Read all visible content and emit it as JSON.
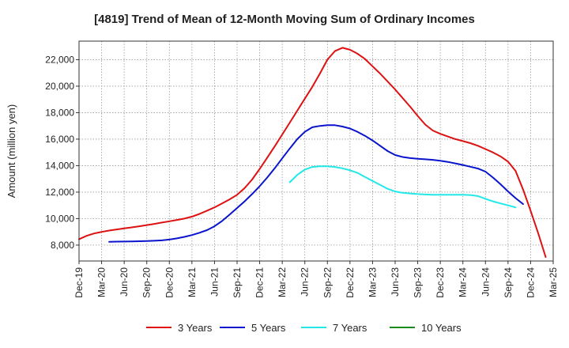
{
  "chart_data": {
    "type": "line",
    "title": "[4819]  Trend of Mean of 12-Month Moving Sum of Ordinary Incomes",
    "xlabel": "",
    "ylabel": "Amount (million yen)",
    "ylim": [
      6800,
      23400
    ],
    "yticks": [
      8000,
      10000,
      12000,
      14000,
      16000,
      18000,
      20000,
      22000
    ],
    "ytick_labels": [
      "8,000",
      "10,000",
      "12,000",
      "14,000",
      "16,000",
      "18,000",
      "20,000",
      "22,000"
    ],
    "x_start": "Dec-19",
    "x_months": 63,
    "xticks": [
      0,
      3,
      6,
      9,
      12,
      15,
      18,
      21,
      24,
      27,
      30,
      33,
      36,
      39,
      42,
      45,
      48,
      51,
      54,
      57,
      60,
      63
    ],
    "xtick_labels": [
      "Dec-19",
      "Mar-20",
      "Jun-20",
      "Sep-20",
      "Dec-20",
      "Mar-21",
      "Jun-21",
      "Sep-21",
      "Dec-21",
      "Mar-22",
      "Jun-22",
      "Sep-22",
      "Dec-22",
      "Mar-23",
      "Jun-23",
      "Sep-23",
      "Dec-23",
      "Mar-24",
      "Jun-24",
      "Sep-24",
      "Dec-24",
      "Mar-25"
    ],
    "grid": true,
    "legend_position": "bottom",
    "series": [
      {
        "name": "3 Years",
        "color": "#dd1111",
        "start": 0,
        "values": [
          8450,
          8700,
          8880,
          9000,
          9100,
          9180,
          9260,
          9340,
          9420,
          9510,
          9600,
          9700,
          9800,
          9900,
          10000,
          10150,
          10350,
          10600,
          10850,
          11150,
          11450,
          11800,
          12300,
          12950,
          13750,
          14600,
          15450,
          16350,
          17250,
          18150,
          19050,
          19950,
          20950,
          22000,
          22650,
          22900,
          22750,
          22450,
          22050,
          21500,
          20950,
          20350,
          19750,
          19100,
          18450,
          17750,
          17100,
          16650,
          16400,
          16200,
          16000,
          15850,
          15700,
          15500,
          15250,
          15000,
          14700,
          14300,
          13600,
          12200,
          10600,
          8900,
          7100
        ]
      },
      {
        "name": "5 Years",
        "color": "#0a14cc",
        "start": 4,
        "values": [
          8250,
          8260,
          8270,
          8280,
          8290,
          8310,
          8330,
          8360,
          8420,
          8510,
          8620,
          8760,
          8930,
          9130,
          9420,
          9820,
          10300,
          10800,
          11300,
          11850,
          12450,
          13100,
          13800,
          14550,
          15300,
          16000,
          16550,
          16900,
          17000,
          17050,
          17050,
          16950,
          16800,
          16550,
          16250,
          15900,
          15500,
          15100,
          14800,
          14650,
          14570,
          14520,
          14480,
          14440,
          14370,
          14280,
          14170,
          14050,
          13920,
          13780,
          13550,
          13100,
          12600,
          12050,
          11550,
          11100
        ]
      },
      {
        "name": "7 Years",
        "color": "#22e8e8",
        "start": 28,
        "values": [
          12750,
          13300,
          13700,
          13900,
          13950,
          13950,
          13900,
          13800,
          13650,
          13450,
          13150,
          12850,
          12550,
          12250,
          12050,
          11950,
          11900,
          11850,
          11820,
          11800,
          11800,
          11800,
          11800,
          11800,
          11780,
          11700,
          11500,
          11300,
          11150,
          11000,
          10850
        ]
      },
      {
        "name": "10 Years",
        "color": "#1a8a1a",
        "start": 0,
        "values": []
      }
    ]
  }
}
